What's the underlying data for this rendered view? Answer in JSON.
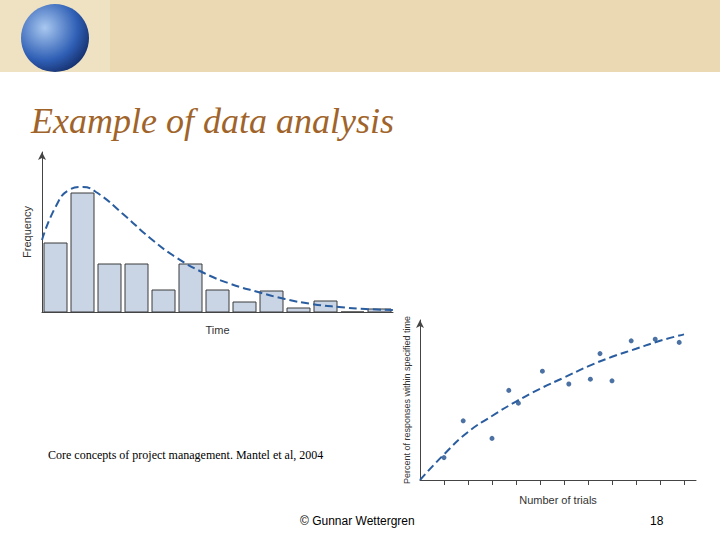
{
  "slide": {
    "title": "Example of data analysis",
    "citation": "Core concepts of project management. Mantel et al, 2004",
    "footer": "© Gunnar Wettergren",
    "page": 18
  },
  "chart_data": [
    {
      "type": "histogram",
      "x_label": "Time",
      "y_label": "Frequency",
      "bins": [
        0,
        1,
        2,
        3,
        4,
        5,
        6,
        7,
        8,
        9,
        10,
        11,
        12,
        13
      ],
      "values": [
        6.9,
        11.9,
        4.8,
        4.8,
        2.2,
        4.8,
        2.2,
        1.0,
        2.1,
        0.4,
        1.1,
        0,
        0.3
      ],
      "color": "#c9d4e5",
      "xlim": [
        0,
        13
      ],
      "ylim": [
        0,
        16
      ],
      "xticks": [],
      "yticks": [],
      "tick_labels": false,
      "grid": false,
      "series": [
        {
          "type": "line",
          "line_style": "dashed",
          "color": "#2a5d9f",
          "x": [
            0,
            0.5,
            1,
            1.5,
            2,
            3,
            4,
            5,
            6,
            7,
            8,
            9,
            10,
            11,
            12,
            13
          ],
          "values": [
            7.2,
            10.5,
            12.2,
            12.5,
            12.0,
            9.8,
            7.4,
            5.4,
            3.9,
            2.8,
            2.0,
            1.3,
            0.8,
            0.5,
            0.3,
            0.2
          ]
        }
      ]
    },
    {
      "type": "scatter",
      "x_label": "Number of trials",
      "y_label": "Percent of responses within specified time",
      "x": [
        1,
        1.8,
        3,
        3.7,
        4.1,
        5.1,
        6.2,
        7.1,
        7.5,
        8,
        8.8,
        9.8,
        10.8
      ],
      "values": [
        14,
        37,
        26,
        56,
        48,
        68,
        60,
        63,
        79,
        62,
        87,
        88,
        86
      ],
      "color": "#1f4e8c",
      "marker": "circle",
      "xlim": [
        0,
        11.5
      ],
      "ylim": [
        0,
        100
      ],
      "xticks": [
        1,
        2,
        3,
        4,
        5,
        6,
        7,
        8,
        9,
        10,
        11
      ],
      "yticks": [],
      "tick_labels": false,
      "grid": false,
      "series": [
        {
          "type": "line",
          "line_style": "dashed",
          "color": "#2a5d9f",
          "x": [
            0,
            1,
            2,
            3,
            4,
            5,
            6,
            7,
            8,
            9,
            10,
            11
          ],
          "values": [
            0,
            16,
            30,
            40,
            49,
            57,
            64,
            71,
            77,
            82,
            87,
            91
          ]
        }
      ]
    }
  ]
}
